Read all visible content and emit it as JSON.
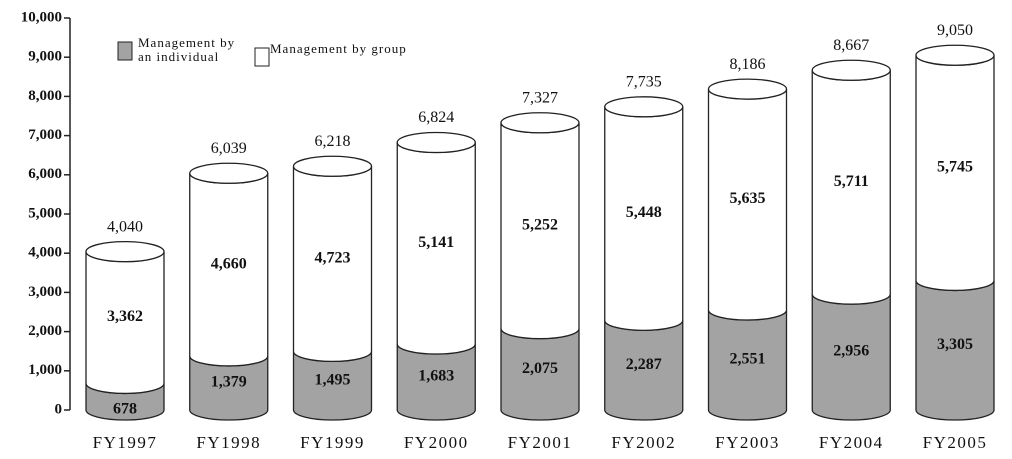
{
  "chart_data": {
    "type": "stacked-cylinder",
    "categories": [
      "FY1997",
      "FY1998",
      "FY1999",
      "FY2000",
      "FY2001",
      "FY2002",
      "FY2003",
      "FY2004",
      "FY2005"
    ],
    "series": [
      {
        "name": "Management by an individual",
        "color": "#a3a3a3",
        "values": [
          678,
          1379,
          1495,
          1683,
          2075,
          2287,
          2551,
          2956,
          3305
        ],
        "value_labels": [
          "678",
          "1,379",
          "1,495",
          "1,683",
          "2,075",
          "2,287",
          "2,551",
          "2,956",
          "3,305"
        ]
      },
      {
        "name": "Management by group",
        "color": "#ffffff",
        "values": [
          3362,
          4660,
          4723,
          5141,
          5252,
          5448,
          5635,
          5711,
          5745
        ],
        "value_labels": [
          "3,362",
          "4,660",
          "4,723",
          "5,141",
          "5,252",
          "5,448",
          "5,635",
          "5,711",
          "5,745"
        ]
      }
    ],
    "totals": [
      4040,
      6039,
      6218,
      6824,
      7327,
      7735,
      8186,
      8667,
      9050
    ],
    "total_labels": [
      "4,040",
      "6,039",
      "6,218",
      "6,824",
      "7,327",
      "7,735",
      "8,186",
      "8,667",
      "9,050"
    ],
    "ylim": [
      0,
      10000
    ],
    "yticks": [
      0,
      {
        "value": 1000,
        "label": "1,000"
      },
      {
        "value": 2000,
        "label": "2,000"
      },
      {
        "value": 3000,
        "label": "3,000"
      },
      {
        "value": 4000,
        "label": "4,000"
      },
      {
        "value": 5000,
        "label": "5,000"
      },
      {
        "value": 6000,
        "label": "6,000"
      },
      {
        "value": 7000,
        "label": "7,000"
      },
      {
        "value": 8000,
        "label": "8,000"
      },
      {
        "value": 9000,
        "label": "9,000"
      },
      {
        "value": 10000,
        "label": "10,000"
      }
    ],
    "legend": "top-left"
  }
}
